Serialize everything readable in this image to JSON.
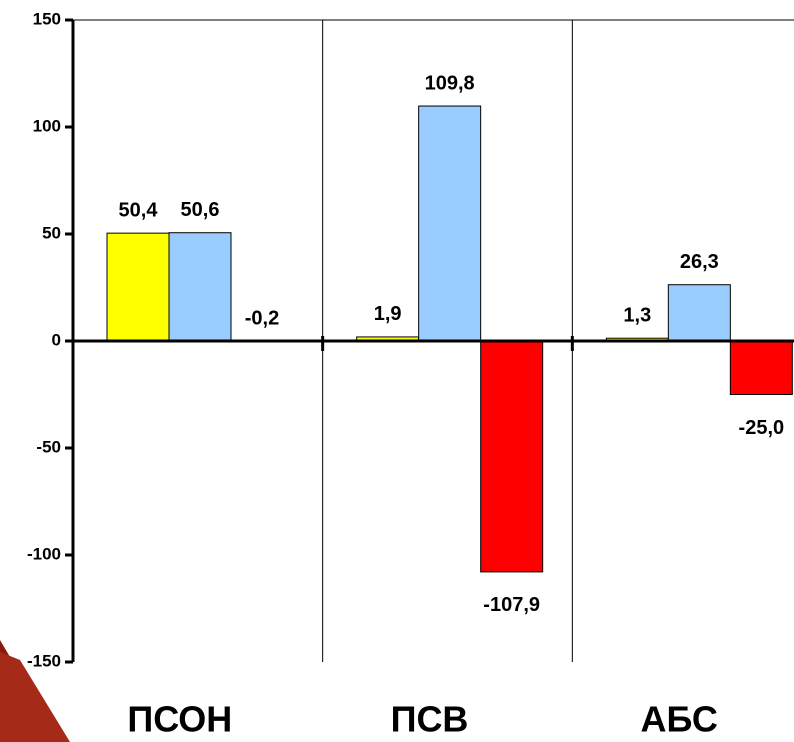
{
  "chart_data": {
    "type": "bar",
    "categories": [
      "ПСОН",
      "ПСВ",
      "АБС"
    ],
    "series": [
      {
        "color": "#ffff00",
        "values": [
          50.4,
          1.9,
          1.3
        ],
        "value_labels": [
          "50,4",
          "1,9",
          "1,3"
        ]
      },
      {
        "color": "#99ccff",
        "values": [
          50.6,
          109.8,
          26.3
        ],
        "value_labels": [
          "50,6",
          "109,8",
          "26,3"
        ]
      },
      {
        "color": "#ff0000",
        "values": [
          -0.2,
          -107.9,
          -25.0
        ],
        "value_labels": [
          "-0,2",
          "-107,9",
          "-25,0"
        ]
      }
    ],
    "ylim": [
      -150,
      150
    ],
    "yticks": [
      -150,
      -100,
      -50,
      0,
      50,
      100,
      150
    ]
  }
}
